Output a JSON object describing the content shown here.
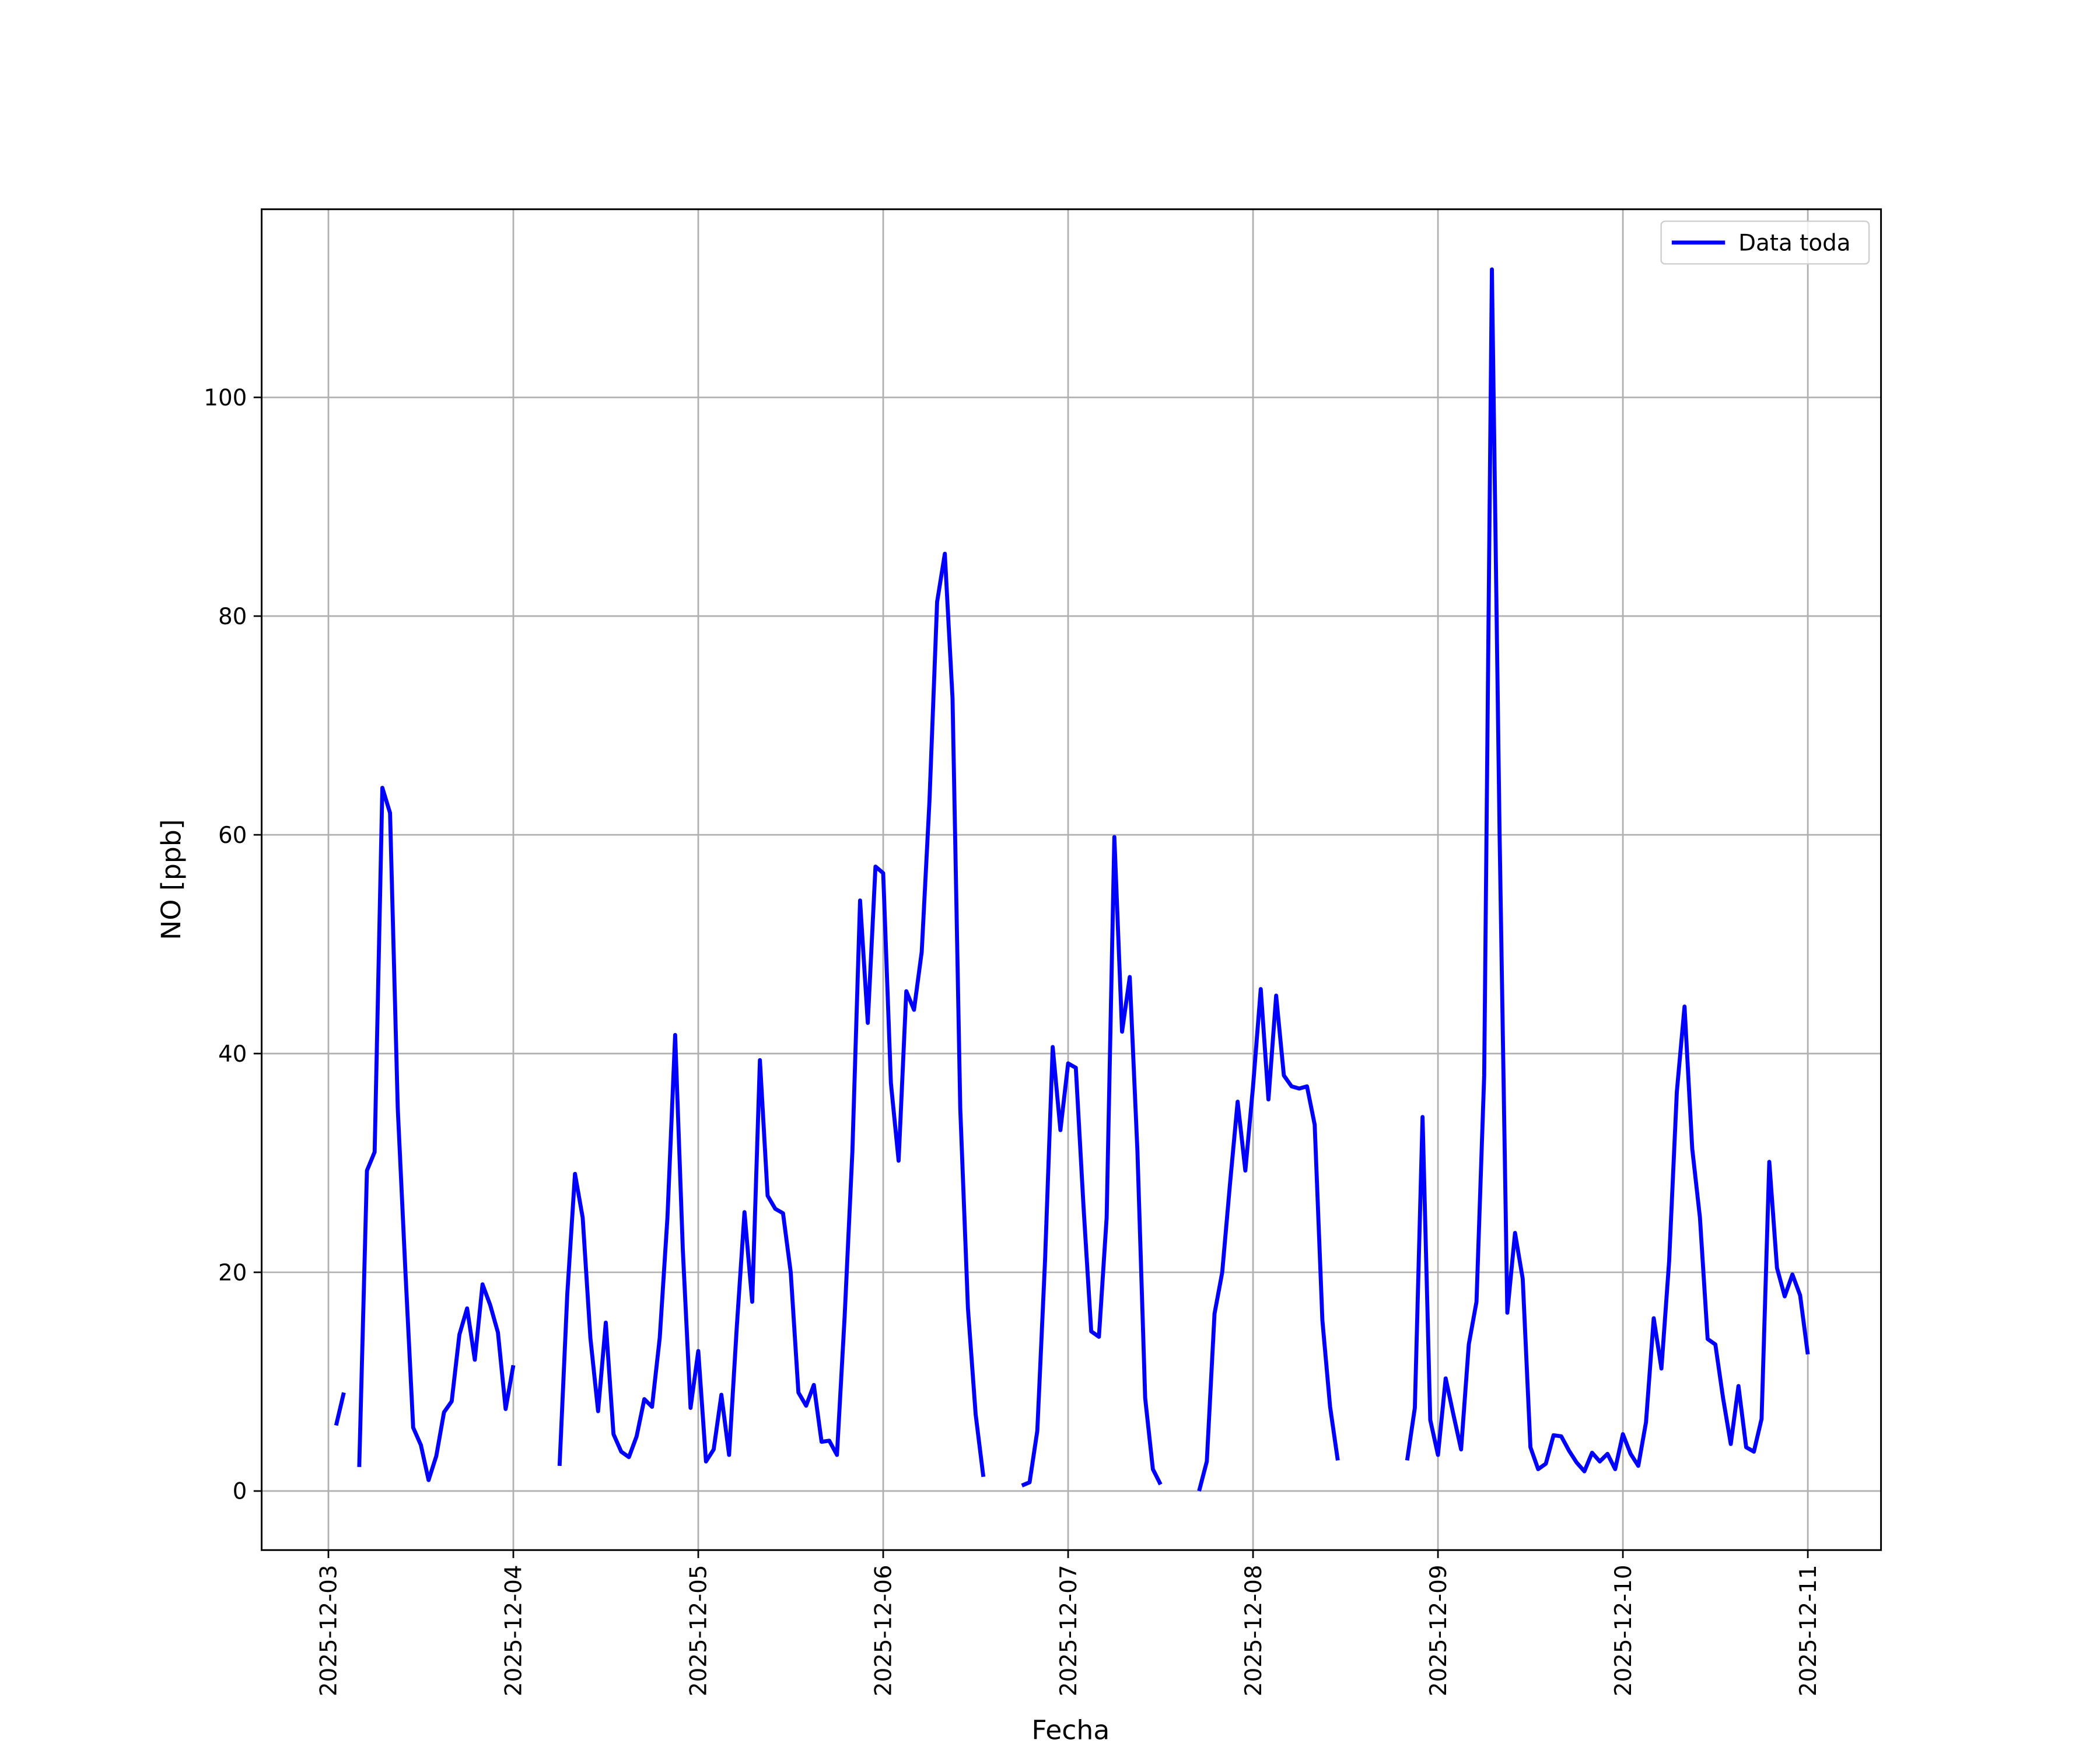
{
  "chart_data": {
    "type": "line",
    "xlabel": "Fecha",
    "ylabel": "NO [ppb]",
    "legend": "upper right",
    "grid": true,
    "xlim": [
      "2025-12-02 15:20",
      "2025-12-11 09:30"
    ],
    "ylim": [
      -5.4,
      117.2
    ],
    "xticks": [
      "2025-12-03",
      "2025-12-04",
      "2025-12-05",
      "2025-12-06",
      "2025-12-07",
      "2025-12-08",
      "2025-12-09",
      "2025-12-10",
      "2025-12-11"
    ],
    "yticks": [
      0,
      20,
      40,
      60,
      80,
      100
    ],
    "x": [
      "2025-12-03 01:00",
      "2025-12-03 02:00",
      "2025-12-03 03:00",
      "2025-12-03 04:00",
      "2025-12-03 05:00",
      "2025-12-03 06:00",
      "2025-12-03 07:00",
      "2025-12-03 08:00",
      "2025-12-03 09:00",
      "2025-12-03 10:00",
      "2025-12-03 11:00",
      "2025-12-03 12:00",
      "2025-12-03 13:00",
      "2025-12-03 14:00",
      "2025-12-03 15:00",
      "2025-12-03 16:00",
      "2025-12-03 17:00",
      "2025-12-03 18:00",
      "2025-12-03 19:00",
      "2025-12-03 20:00",
      "2025-12-03 21:00",
      "2025-12-03 22:00",
      "2025-12-03 23:00",
      "2025-12-04 00:00",
      "2025-12-04 01:00",
      "2025-12-04 02:00",
      "2025-12-04 03:00",
      "2025-12-04 04:00",
      "2025-12-04 05:00",
      "2025-12-04 06:00",
      "2025-12-04 07:00",
      "2025-12-04 08:00",
      "2025-12-04 09:00",
      "2025-12-04 10:00",
      "2025-12-04 11:00",
      "2025-12-04 12:00",
      "2025-12-04 13:00",
      "2025-12-04 14:00",
      "2025-12-04 15:00",
      "2025-12-04 16:00",
      "2025-12-04 17:00",
      "2025-12-04 18:00",
      "2025-12-04 19:00",
      "2025-12-04 20:00",
      "2025-12-04 21:00",
      "2025-12-04 22:00",
      "2025-12-04 23:00",
      "2025-12-05 00:00",
      "2025-12-05 01:00",
      "2025-12-05 02:00",
      "2025-12-05 03:00",
      "2025-12-05 04:00",
      "2025-12-05 05:00",
      "2025-12-05 06:00",
      "2025-12-05 07:00",
      "2025-12-05 08:00",
      "2025-12-05 09:00",
      "2025-12-05 10:00",
      "2025-12-05 11:00",
      "2025-12-05 12:00",
      "2025-12-05 13:00",
      "2025-12-05 14:00",
      "2025-12-05 15:00",
      "2025-12-05 16:00",
      "2025-12-05 17:00",
      "2025-12-05 18:00",
      "2025-12-05 19:00",
      "2025-12-05 20:00",
      "2025-12-05 21:00",
      "2025-12-05 22:00",
      "2025-12-05 23:00",
      "2025-12-06 00:00",
      "2025-12-06 01:00",
      "2025-12-06 02:00",
      "2025-12-06 03:00",
      "2025-12-06 04:00",
      "2025-12-06 05:00",
      "2025-12-06 06:00",
      "2025-12-06 07:00",
      "2025-12-06 08:00",
      "2025-12-06 09:00",
      "2025-12-06 10:00",
      "2025-12-06 11:00",
      "2025-12-06 12:00",
      "2025-12-06 13:00",
      "2025-12-06 14:00",
      "2025-12-06 15:00",
      "2025-12-06 16:00",
      "2025-12-06 17:00",
      "2025-12-06 18:00",
      "2025-12-06 19:00",
      "2025-12-06 20:00",
      "2025-12-06 21:00",
      "2025-12-06 22:00",
      "2025-12-06 23:00",
      "2025-12-07 00:00",
      "2025-12-07 01:00",
      "2025-12-07 02:00",
      "2025-12-07 03:00",
      "2025-12-07 04:00",
      "2025-12-07 05:00",
      "2025-12-07 06:00",
      "2025-12-07 07:00",
      "2025-12-07 08:00",
      "2025-12-07 09:00",
      "2025-12-07 10:00",
      "2025-12-07 11:00",
      "2025-12-07 12:00",
      "2025-12-07 13:00",
      "2025-12-07 14:00",
      "2025-12-07 15:00",
      "2025-12-07 16:00",
      "2025-12-07 17:00",
      "2025-12-07 18:00",
      "2025-12-07 19:00",
      "2025-12-07 20:00",
      "2025-12-07 21:00",
      "2025-12-07 22:00",
      "2025-12-07 23:00",
      "2025-12-08 00:00",
      "2025-12-08 01:00",
      "2025-12-08 02:00",
      "2025-12-08 03:00",
      "2025-12-08 04:00",
      "2025-12-08 05:00",
      "2025-12-08 06:00",
      "2025-12-08 07:00",
      "2025-12-08 08:00",
      "2025-12-08 09:00",
      "2025-12-08 10:00",
      "2025-12-08 11:00",
      "2025-12-08 12:00",
      "2025-12-08 13:00",
      "2025-12-08 14:00",
      "2025-12-08 15:00",
      "2025-12-08 16:00",
      "2025-12-08 17:00",
      "2025-12-08 18:00",
      "2025-12-08 19:00",
      "2025-12-08 20:00",
      "2025-12-08 21:00",
      "2025-12-08 22:00",
      "2025-12-08 23:00",
      "2025-12-09 00:00",
      "2025-12-09 01:00",
      "2025-12-09 02:00",
      "2025-12-09 03:00",
      "2025-12-09 04:00",
      "2025-12-09 05:00",
      "2025-12-09 06:00",
      "2025-12-09 07:00",
      "2025-12-09 08:00",
      "2025-12-09 09:00",
      "2025-12-09 10:00",
      "2025-12-09 11:00",
      "2025-12-09 12:00",
      "2025-12-09 13:00",
      "2025-12-09 14:00",
      "2025-12-09 15:00",
      "2025-12-09 16:00",
      "2025-12-09 17:00",
      "2025-12-09 18:00",
      "2025-12-09 19:00",
      "2025-12-09 20:00",
      "2025-12-09 21:00",
      "2025-12-09 22:00",
      "2025-12-09 23:00",
      "2025-12-10 00:00",
      "2025-12-10 01:00",
      "2025-12-10 02:00",
      "2025-12-10 03:00",
      "2025-12-10 04:00",
      "2025-12-10 05:00",
      "2025-12-10 06:00",
      "2025-12-10 07:00",
      "2025-12-10 08:00",
      "2025-12-10 09:00",
      "2025-12-10 10:00",
      "2025-12-10 11:00",
      "2025-12-10 12:00",
      "2025-12-10 13:00",
      "2025-12-10 14:00",
      "2025-12-10 15:00",
      "2025-12-10 16:00",
      "2025-12-10 17:00",
      "2025-12-10 18:00",
      "2025-12-10 19:00",
      "2025-12-10 20:00",
      "2025-12-10 21:00",
      "2025-12-10 22:00",
      "2025-12-10 23:00",
      "2025-12-11 00:00"
    ],
    "series": [
      {
        "name": "Data toda",
        "color": "#0000ff",
        "values": [
          6,
          9,
          null,
          2.2,
          29.3,
          31,
          64.3,
          62,
          35,
          20,
          5.8,
          4.2,
          1,
          3.2,
          7.2,
          8.2,
          14.3,
          16.7,
          12,
          18.9,
          17,
          14.5,
          7.5,
          11.5,
          null,
          null,
          null,
          null,
          null,
          2.3,
          18,
          29,
          25,
          14,
          7.3,
          15.4,
          5.2,
          3.6,
          3.1,
          5,
          8.4,
          7.7,
          14,
          25,
          41.7,
          22,
          7.6,
          12.8,
          2.7,
          3.8,
          8.8,
          3.3,
          15,
          25.5,
          17.3,
          39.4,
          27,
          25.8,
          25.4,
          20,
          9,
          7.8,
          9.7,
          4.5,
          4.6,
          3.3,
          16,
          31,
          54,
          42.8,
          57.1,
          56.5,
          37.3,
          30.2,
          45.7,
          44,
          49.3,
          63,
          81.3,
          85.7,
          72.5,
          35,
          16.7,
          7,
          1.3,
          null,
          null,
          null,
          null,
          0.5,
          0.8,
          5.5,
          21,
          40.6,
          33,
          39.1,
          38.7,
          26,
          14.6,
          14.1,
          25,
          59.8,
          42,
          47,
          31,
          8.5,
          2,
          0.6,
          null,
          null,
          null,
          null,
          0,
          2.7,
          16.2,
          20,
          28,
          35.6,
          29.3,
          37,
          45.9,
          35.8,
          45.3,
          38,
          37,
          36.8,
          37,
          33.5,
          15.6,
          7.7,
          2.8,
          null,
          null,
          null,
          null,
          null,
          null,
          null,
          null,
          2.8,
          7.6,
          34.2,
          6.5,
          3.3,
          10.3,
          7,
          3.8,
          13.4,
          17.3,
          38,
          111.7,
          60,
          16.3,
          23.6,
          19.4,
          4,
          2,
          2.5,
          5.1,
          5,
          3.7,
          2.6,
          1.8,
          3.5,
          2.7,
          3.4,
          2,
          5.2,
          3.4,
          2.3,
          6.3,
          15.8,
          11.2,
          21,
          36.5,
          44.3,
          31.3,
          25,
          13.9,
          13.4,
          8.5,
          4.3,
          9.6,
          4,
          3.6,
          6.6,
          30.1,
          20.4,
          17.8,
          19.8,
          17.9,
          12.5
        ]
      }
    ]
  }
}
